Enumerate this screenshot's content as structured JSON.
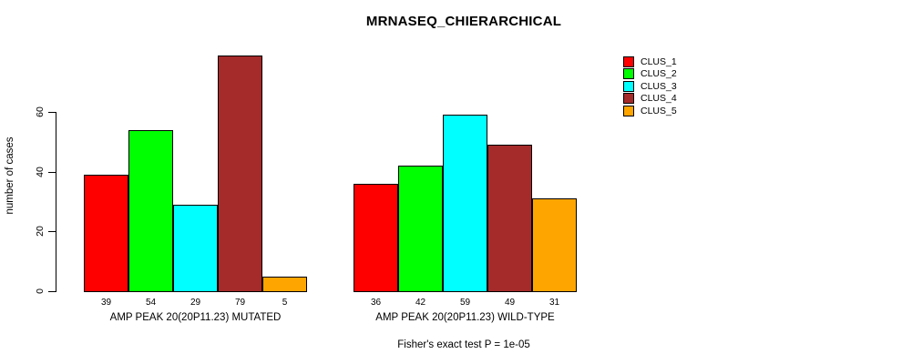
{
  "chart_data": {
    "type": "bar",
    "title": "MRNASEQ_CHIERARCHICAL",
    "ylabel": "number of cases",
    "footnote": "Fisher's exact test P = 1e-05",
    "yticks": [
      0,
      20,
      40,
      60
    ],
    "ylim": [
      0,
      60
    ],
    "grid": false,
    "legend_position": "top-right",
    "bar_border_color": "#000000",
    "series": [
      {
        "name": "CLUS_1",
        "color": "#FF0000"
      },
      {
        "name": "CLUS_2",
        "color": "#00FF00"
      },
      {
        "name": "CLUS_3",
        "color": "#00FFFF"
      },
      {
        "name": "CLUS_4",
        "color": "#A52A2A"
      },
      {
        "name": "CLUS_5",
        "color": "#FFA500"
      }
    ],
    "groups": [
      {
        "label": "AMP PEAK 20(20P11.23) MUTATED",
        "values": [
          39,
          54,
          29,
          79,
          5
        ]
      },
      {
        "label": "AMP PEAK 20(20P11.23) WILD-TYPE",
        "values": [
          36,
          42,
          59,
          49,
          31
        ]
      }
    ]
  }
}
